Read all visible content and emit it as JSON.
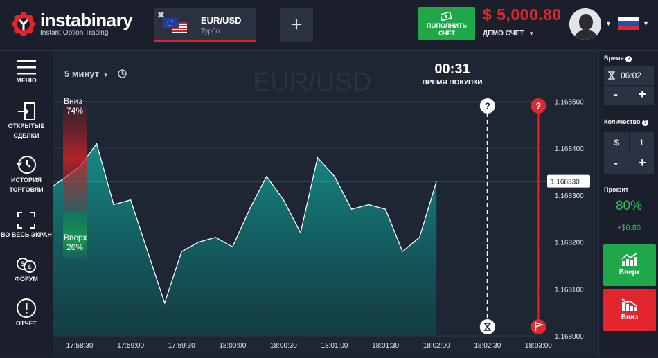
{
  "header": {
    "logo_name": "instabinary",
    "logo_sub": "Instant Option Trading",
    "asset": {
      "name": "EUR/USD",
      "mode": "Турбо",
      "close": "✖"
    },
    "add_tab": "+",
    "deposit_label_1": "ПОПОЛНИТЬ",
    "deposit_label_2": "СЧЕТ",
    "balance": "$ 5,000.80",
    "account": "ДЕМО СЧЕТ",
    "caret": "▼"
  },
  "leftnav": {
    "items": [
      {
        "label_1": "МЕНЮ",
        "label_2": ""
      },
      {
        "label_1": "ОТКРЫТЫЕ",
        "label_2": "СДЕЛКИ"
      },
      {
        "label_1": "ИСТОРИЯ",
        "label_2": "ТОРГОВЛИ"
      },
      {
        "label_1": "ВО ВЕСЬ ЭКРАН",
        "label_2": ""
      },
      {
        "label_1": "ФОРУМ",
        "label_2": ""
      },
      {
        "label_1": "ОТЧЕТ",
        "label_2": ""
      }
    ]
  },
  "chart": {
    "timeframe": "5 минут",
    "timer": "00:31",
    "timer_label": "ВРЕМЯ ПОКУПКИ",
    "watermark": "EUR/USD",
    "down_label": "Вниз",
    "down_pct": "74%",
    "up_label": "Вверх",
    "up_pct": "26%",
    "current_price": "1.168330",
    "colors": {
      "fill": "#0f7f7a",
      "line": "#ffffff",
      "expiry": "#e3262e",
      "purchase": "#ffffff"
    }
  },
  "chart_data": {
    "type": "area",
    "y_ticks": [
      "1.168500",
      "1.168400",
      "1.168300",
      "1.168200",
      "1.168100",
      "1.168000"
    ],
    "ylim": [
      1.168,
      1.16852
    ],
    "x_ticks": [
      "17:58:30",
      "17:59:00",
      "17:59:30",
      "18:00:00",
      "18:00:30",
      "18:01:00",
      "18:01:30",
      "18:02:00",
      "18:02:30",
      "18:03:00"
    ],
    "x": [
      "17:58:30",
      "17:58:40",
      "17:58:50",
      "17:59:00",
      "17:59:10",
      "17:59:20",
      "17:59:30",
      "17:59:40",
      "17:59:50",
      "18:00:00",
      "18:00:10",
      "18:00:20",
      "18:00:30",
      "18:00:40",
      "18:00:50",
      "18:01:00",
      "18:01:10",
      "18:01:20",
      "18:01:30",
      "18:01:40",
      "18:01:50",
      "18:02:00"
    ],
    "values": [
      1.16836,
      1.16841,
      1.16828,
      1.16829,
      1.16818,
      1.16807,
      1.16818,
      1.1682,
      1.16821,
      1.16819,
      1.16827,
      1.16834,
      1.16829,
      1.16822,
      1.16838,
      1.16834,
      1.16827,
      1.16828,
      1.16827,
      1.16818,
      1.16821,
      1.16833
    ],
    "current_price": 1.16833,
    "purchase_time": "18:02:30",
    "expiry_time": "18:03:00"
  },
  "rightpanel": {
    "time_label": "Время",
    "time_value": "06:02",
    "qty_label": "Количество",
    "qty_currency": "$",
    "qty_value": "1",
    "minus": "-",
    "plus": "+",
    "profit_label": "Профит",
    "profit_pct": "80%",
    "profit_amount": "+$0.80",
    "up_button": "Вверх",
    "down_button": "Вниз",
    "help": "?"
  }
}
